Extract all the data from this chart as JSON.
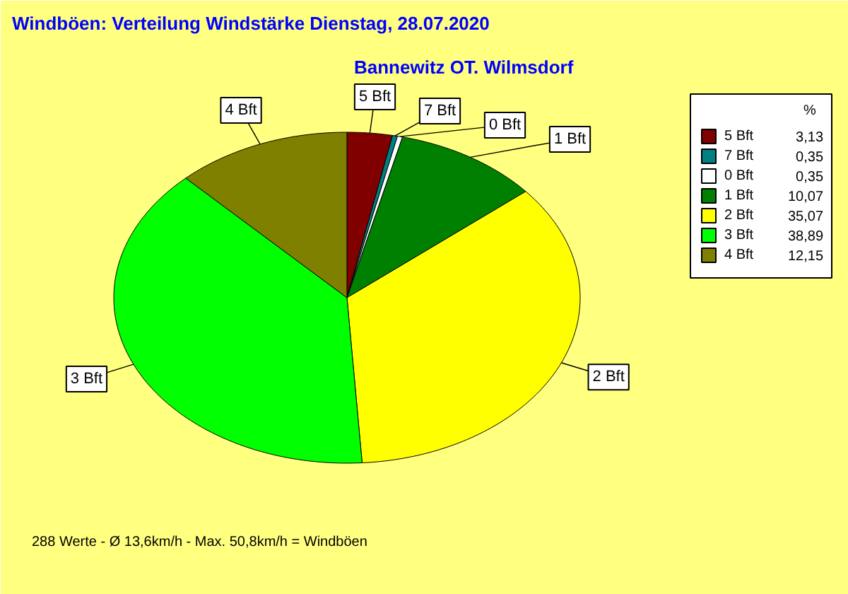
{
  "chart_data": {
    "type": "pie",
    "title": "Windböen: Verteilung Windstärke  Dienstag, 28.07.2020",
    "subtitle": "Bannewitz OT. Wilmsdorf",
    "categories": [
      "5 Bft",
      "7 Bft",
      "0 Bft",
      "1 Bft",
      "2 Bft",
      "3 Bft",
      "4 Bft"
    ],
    "values": [
      3.13,
      0.35,
      0.35,
      10.07,
      35.07,
      38.89,
      12.15
    ],
    "colors": [
      "#800000",
      "#008080",
      "#ffffff",
      "#008000",
      "#ffff00",
      "#00ff00",
      "#808000"
    ],
    "value_labels": [
      "3,13",
      "0,35",
      "0,35",
      "10,07",
      "35,07",
      "38,89",
      "12,15"
    ],
    "legend": "right",
    "legend_title": "%",
    "annotations": [
      "288 Werte   -   Ø 13,6km/h  -  Max. 50,8km/h = Windböen"
    ]
  }
}
